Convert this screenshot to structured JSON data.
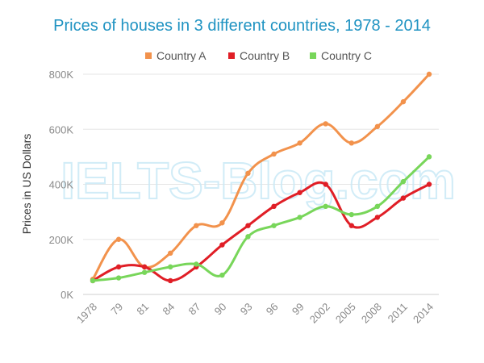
{
  "watermark": "IELTS-Blog.com",
  "chart_data": {
    "type": "line",
    "title": "Prices of houses in 3 different countries, 1978 - 2014",
    "ylabel": "Prices in US Dollars",
    "xlabel": "",
    "categories": [
      "1978",
      "79",
      "81",
      "84",
      "87",
      "90",
      "93",
      "96",
      "99",
      "2002",
      "2005",
      "2008",
      "2011",
      "2014"
    ],
    "yticks": [
      {
        "value": 0,
        "label": "0K"
      },
      {
        "value": 200000,
        "label": "200K"
      },
      {
        "value": 400000,
        "label": "400K"
      },
      {
        "value": 600000,
        "label": "600K"
      },
      {
        "value": 800000,
        "label": "800K"
      }
    ],
    "ylim": [
      0,
      800000
    ],
    "grid": true,
    "legend_position": "top",
    "series": [
      {
        "name": "Country A",
        "color": "#f2924c",
        "values": [
          55000,
          200000,
          100000,
          150000,
          250000,
          260000,
          440000,
          510000,
          550000,
          620000,
          550000,
          610000,
          700000,
          800000
        ]
      },
      {
        "name": "Country B",
        "color": "#e01e26",
        "values": [
          50000,
          100000,
          100000,
          50000,
          100000,
          180000,
          250000,
          320000,
          370000,
          400000,
          250000,
          280000,
          350000,
          400000
        ]
      },
      {
        "name": "Country C",
        "color": "#78d65a",
        "values": [
          50000,
          60000,
          80000,
          100000,
          110000,
          70000,
          210000,
          250000,
          280000,
          320000,
          290000,
          320000,
          410000,
          500000
        ]
      }
    ]
  }
}
